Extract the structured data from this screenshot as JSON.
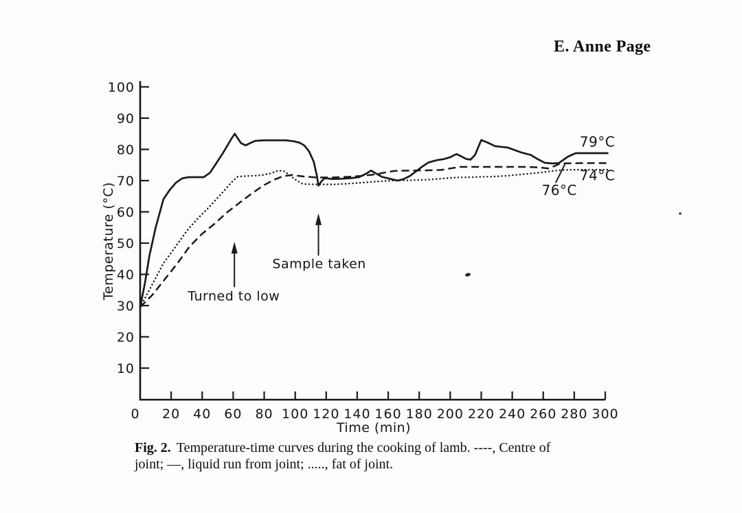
{
  "header": {
    "author": "E. Anne Page"
  },
  "colors": {
    "ink": "#1a1a1a",
    "paper": "#fdfdfe"
  },
  "chart_data": {
    "type": "line",
    "title": "Temperature-time curves during the cooking of lamb",
    "xlabel": "Time (min)",
    "ylabel": "Temperature (°C)",
    "xlim": [
      0,
      300
    ],
    "ylim": [
      0,
      100
    ],
    "x_ticks": [
      0,
      20,
      40,
      60,
      80,
      100,
      120,
      140,
      160,
      180,
      200,
      220,
      240,
      260,
      280,
      300
    ],
    "y_ticks": [
      10,
      20,
      30,
      40,
      50,
      60,
      70,
      80,
      90,
      100
    ],
    "grid": false,
    "legend_position": "in-caption",
    "series": [
      {
        "id": "centre-of-joint",
        "name": "Centre of joint",
        "symbol": "----",
        "line_style": "dashed",
        "end_label": {
          "text": "76°C",
          "t": 259,
          "temp": 65.4,
          "leader": {
            "from": [
              268,
              69.3
            ],
            "to": [
              274,
              75.3
            ]
          }
        },
        "points": [
          [
            0,
            29.5
          ],
          [
            8,
            33.5
          ],
          [
            16,
            38.5
          ],
          [
            24,
            43.5
          ],
          [
            32,
            49
          ],
          [
            40,
            53
          ],
          [
            48,
            56.2
          ],
          [
            56,
            59.8
          ],
          [
            63,
            62.5
          ],
          [
            71,
            65.5
          ],
          [
            79,
            68.3
          ],
          [
            86,
            70.2
          ],
          [
            92,
            71.4
          ],
          [
            98,
            71.8
          ],
          [
            106,
            71.3
          ],
          [
            114,
            71
          ],
          [
            124,
            71
          ],
          [
            134,
            71.2
          ],
          [
            142,
            71.5
          ],
          [
            150,
            71.9
          ],
          [
            158,
            72.6
          ],
          [
            164,
            73.1
          ],
          [
            174,
            73.2
          ],
          [
            186,
            73.3
          ],
          [
            194,
            73.4
          ],
          [
            200,
            73.9
          ],
          [
            206,
            74.4
          ],
          [
            220,
            74.4
          ],
          [
            236,
            74.4
          ],
          [
            250,
            74.4
          ],
          [
            258,
            74.2
          ],
          [
            263,
            73.9
          ],
          [
            267,
            74.6
          ],
          [
            271,
            75.5
          ],
          [
            284,
            75.6
          ],
          [
            302,
            75.6
          ]
        ]
      },
      {
        "id": "fat-of-joint",
        "name": "Fat of joint",
        "symbol": ".....",
        "line_style": "dotted",
        "end_label": {
          "text": "74°C",
          "t": 283.5,
          "temp": 70.1
        },
        "points": [
          [
            0,
            29.5
          ],
          [
            7,
            36
          ],
          [
            15,
            43.5
          ],
          [
            23,
            49
          ],
          [
            31,
            54.5
          ],
          [
            38,
            58.3
          ],
          [
            44,
            61.3
          ],
          [
            50,
            64.5
          ],
          [
            56,
            67.8
          ],
          [
            60,
            70
          ],
          [
            63,
            71.3
          ],
          [
            70,
            71.5
          ],
          [
            78,
            71.7
          ],
          [
            84,
            72.3
          ],
          [
            89,
            73.2
          ],
          [
            93,
            73
          ],
          [
            97,
            71.5
          ],
          [
            101,
            70
          ],
          [
            105,
            68.9
          ],
          [
            115,
            68.8
          ],
          [
            125,
            68.8
          ],
          [
            133,
            69
          ],
          [
            142,
            69.3
          ],
          [
            152,
            69.7
          ],
          [
            162,
            70
          ],
          [
            174,
            70.1
          ],
          [
            186,
            70.3
          ],
          [
            196,
            70.7
          ],
          [
            204,
            71
          ],
          [
            214,
            71.1
          ],
          [
            228,
            71.3
          ],
          [
            238,
            71.6
          ],
          [
            246,
            72
          ],
          [
            253,
            72.3
          ],
          [
            260,
            72.7
          ],
          [
            266,
            73.1
          ],
          [
            272,
            73.4
          ],
          [
            282,
            73.5
          ],
          [
            302,
            73.5
          ]
        ]
      },
      {
        "id": "liquid-run-from-joint",
        "name": "Liquid run from joint",
        "symbol": "—",
        "line_style": "solid",
        "end_label": {
          "text": "79°C",
          "t": 283.5,
          "temp": 80.9
        },
        "points": [
          [
            0,
            29.5
          ],
          [
            3,
            37
          ],
          [
            6,
            46
          ],
          [
            10,
            55
          ],
          [
            15,
            64
          ],
          [
            19,
            67
          ],
          [
            23,
            69.3
          ],
          [
            27,
            70.7
          ],
          [
            31,
            71.1
          ],
          [
            36,
            71.1
          ],
          [
            41,
            71.1
          ],
          [
            45,
            72.5
          ],
          [
            49,
            75.5
          ],
          [
            53,
            78.5
          ],
          [
            56,
            81
          ],
          [
            59,
            83.5
          ],
          [
            61,
            85
          ],
          [
            63,
            83.5
          ],
          [
            65,
            82
          ],
          [
            68,
            81.3
          ],
          [
            71,
            82
          ],
          [
            74,
            82.7
          ],
          [
            80,
            82.9
          ],
          [
            87,
            82.9
          ],
          [
            94,
            82.9
          ],
          [
            99,
            82.6
          ],
          [
            103,
            82.1
          ],
          [
            106,
            81.2
          ],
          [
            109,
            79.3
          ],
          [
            112,
            76
          ],
          [
            114,
            71.5
          ],
          [
            115,
            68.4
          ],
          [
            117,
            69.8
          ],
          [
            119,
            70.8
          ],
          [
            124,
            70.5
          ],
          [
            130,
            70.6
          ],
          [
            136,
            70.8
          ],
          [
            141,
            71.1
          ],
          [
            145,
            72
          ],
          [
            149,
            73.2
          ],
          [
            152,
            72.3
          ],
          [
            156,
            71.2
          ],
          [
            161,
            70.6
          ],
          [
            166,
            70
          ],
          [
            170,
            70.5
          ],
          [
            174,
            71.5
          ],
          [
            178,
            73
          ],
          [
            182,
            74.5
          ],
          [
            186,
            75.8
          ],
          [
            191,
            76.5
          ],
          [
            196,
            76.9
          ],
          [
            200,
            77.5
          ],
          [
            204,
            78.5
          ],
          [
            207,
            77.8
          ],
          [
            210,
            77
          ],
          [
            213,
            76.7
          ],
          [
            216,
            78.2
          ],
          [
            220,
            83
          ],
          [
            224,
            82.2
          ],
          [
            229,
            81
          ],
          [
            237,
            80.6
          ],
          [
            246,
            79
          ],
          [
            252,
            78.2
          ],
          [
            256,
            77
          ],
          [
            261,
            75.7
          ],
          [
            266,
            75.5
          ],
          [
            270,
            75.6
          ],
          [
            276,
            77.7
          ],
          [
            281,
            78.8
          ],
          [
            290,
            78.8
          ],
          [
            302,
            78.8
          ]
        ]
      }
    ],
    "annotations": [
      {
        "text": "Turned to low",
        "text_t": 60.4,
        "text_temp": 31.6,
        "arrow_t": 60.8,
        "tip_temp": 50.4,
        "tail_temp": 35.9
      },
      {
        "text": "Sample taken",
        "text_t": 115.5,
        "text_temp": 42.0,
        "arrow_t": 115,
        "tip_temp": 59.5,
        "tail_temp": 46.0
      }
    ]
  },
  "caption": {
    "fig_label": "Fig. 2.",
    "line1": "Temperature-time curves during the cooking of lamb. ----, Centre of",
    "line2": "joint; —, liquid run from joint; ....., fat of joint."
  }
}
